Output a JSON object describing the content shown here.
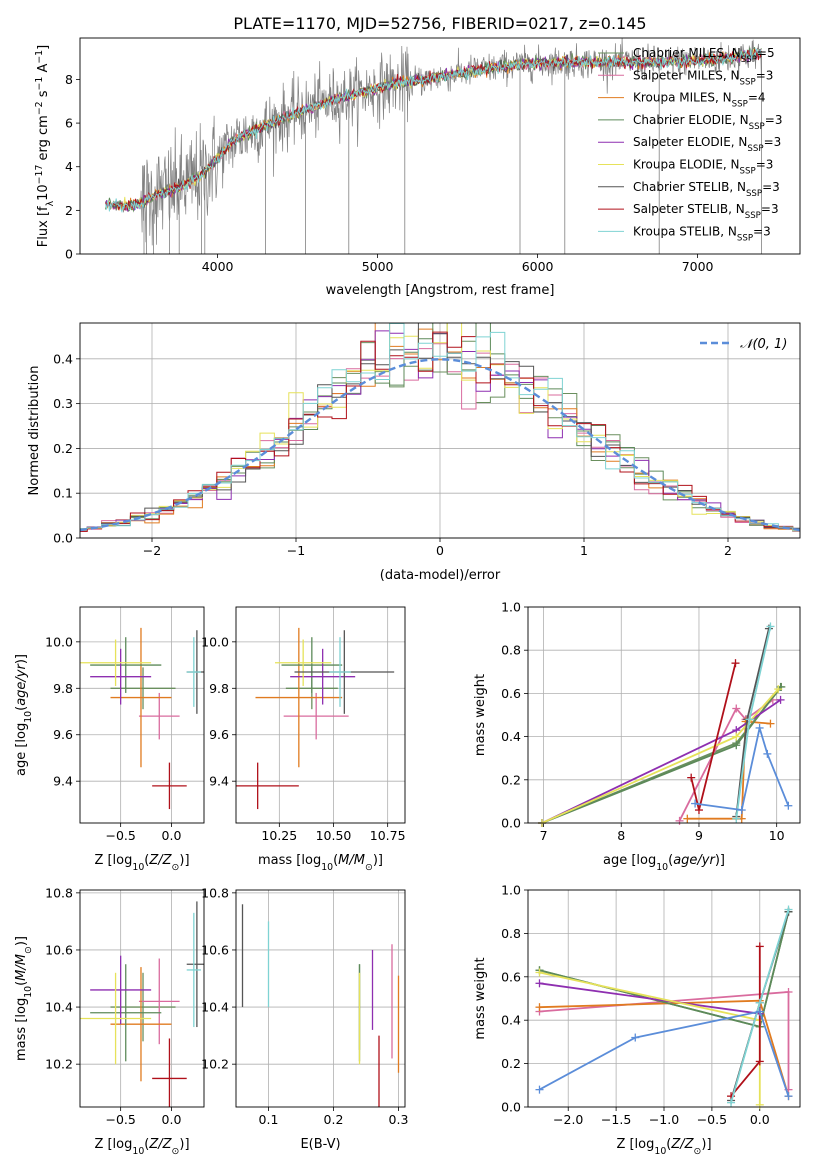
{
  "figure_title": "PLATE=1170, MJD=52756, FIBERID=0217, z=0.145",
  "colors": {
    "grid": "#b0b0b0",
    "models": [
      "#6a8f5e",
      "#d96b9e",
      "#e07b20",
      "#5d8a5a",
      "#8e2fb0",
      "#e6e25a",
      "#555555",
      "#b0101a",
      "#7fd3d3"
    ],
    "normal_curve": "#5b8dd9",
    "spectrum_data": "#808080"
  },
  "chart_data": [
    {
      "id": "spectrum",
      "type": "line",
      "title": "PLATE=1170, MJD=52756, FIBERID=0217, z=0.145",
      "xlabel": "wavelength [Angstrom, rest frame]",
      "ylabel": "Flux [f_λ 10^-17 erg cm^-2 s^-1 A^-1]",
      "xlim": [
        3140,
        7640
      ],
      "ylim": [
        0,
        9.9
      ],
      "xticks": [
        4000,
        5000,
        6000,
        7000
      ],
      "yticks": [
        0,
        2,
        4,
        6,
        8
      ],
      "grid": false,
      "legend_placement": "top-right",
      "legend": [
        {
          "label": "Chabrier MILES, N",
          "sub": "SSP",
          "suffix": "=5"
        },
        {
          "label": "Salpeter MILES, N",
          "sub": "SSP",
          "suffix": "=3"
        },
        {
          "label": "Kroupa MILES, N",
          "sub": "SSP",
          "suffix": "=4"
        },
        {
          "label": "Chabrier ELODIE, N",
          "sub": "SSP",
          "suffix": "=3"
        },
        {
          "label": "Salpeter ELODIE, N",
          "sub": "SSP",
          "suffix": "=3"
        },
        {
          "label": "Kroupa ELODIE, N",
          "sub": "SSP",
          "suffix": "=3"
        },
        {
          "label": "Chabrier STELIB, N",
          "sub": "SSP",
          "suffix": "=3"
        },
        {
          "label": "Salpeter STELIB, N",
          "sub": "SSP",
          "suffix": "=3"
        },
        {
          "label": "Kroupa STELIB, N",
          "sub": "SSP",
          "suffix": "=3"
        }
      ],
      "continuum": {
        "x": [
          3300,
          3450,
          3520,
          3600,
          3700,
          3800,
          3900,
          4000,
          4100,
          4300,
          4500,
          4700,
          4900,
          5100,
          5300,
          5600,
          5900,
          6200,
          6500,
          6800,
          7100,
          7400
        ],
        "y": [
          2.3,
          2.2,
          2.3,
          2.7,
          2.9,
          3.2,
          3.6,
          4.4,
          5.2,
          5.9,
          6.5,
          7.0,
          7.4,
          7.8,
          8.0,
          8.4,
          8.7,
          8.8,
          8.8,
          8.8,
          8.9,
          9.2
        ]
      },
      "data_spikes_x": [
        3540,
        3555,
        3600,
        3700,
        3760,
        3900,
        3920,
        4300,
        4550,
        4820,
        5170,
        5890,
        6170,
        6760,
        7400
      ]
    },
    {
      "id": "residuals",
      "type": "histogram",
      "xlabel": "(data-model)/error",
      "ylabel": "Normed distribution",
      "xlim": [
        -2.5,
        2.5
      ],
      "ylim": [
        0,
        0.48
      ],
      "xticks": [
        -2,
        -1,
        0,
        1,
        2
      ],
      "yticks": [
        0.0,
        0.1,
        0.2,
        0.3,
        0.4
      ],
      "grid": true,
      "legend_placement": "top-right",
      "legend": [
        "𝒩(0, 1)"
      ],
      "bin_width": 0.1
    },
    {
      "id": "age_vs_Z",
      "type": "errorbar",
      "xlabel": "Z [log10(Z/Z⊙)]",
      "ylabel": "age [log10(age/yr)]",
      "xlim": [
        -0.9,
        0.32
      ],
      "ylim": [
        9.22,
        10.15
      ],
      "xticks": [
        -0.5,
        0.0
      ],
      "yticks": [
        9.4,
        9.6,
        9.8,
        10.0
      ],
      "grid": true,
      "points": [
        {
          "model": 0,
          "x": -0.28,
          "xerr": 0.32,
          "y": 9.8,
          "yerr": 0.09
        },
        {
          "model": 1,
          "x": -0.12,
          "xerr": 0.2,
          "y": 9.68,
          "yerr": 0.1
        },
        {
          "model": 2,
          "x": -0.3,
          "xerr": 0.3,
          "y": 9.76,
          "yerr": 0.3
        },
        {
          "model": 3,
          "x": -0.45,
          "xerr": 0.35,
          "y": 9.9,
          "yerr": 0.12
        },
        {
          "model": 4,
          "x": -0.5,
          "xerr": 0.3,
          "y": 9.85,
          "yerr": 0.12
        },
        {
          "model": 5,
          "x": -0.55,
          "xerr": 0.35,
          "y": 9.91,
          "yerr": 0.1
        },
        {
          "model": 6,
          "x": 0.25,
          "xerr": 0.1,
          "y": 9.87,
          "yerr": 0.18
        },
        {
          "model": 7,
          "x": -0.02,
          "xerr": 0.17,
          "y": 9.38,
          "yerr": 0.1
        },
        {
          "model": 8,
          "x": 0.22,
          "xerr": 0.07,
          "y": 9.87,
          "yerr": 0.15
        }
      ]
    },
    {
      "id": "age_vs_mass",
      "type": "errorbar",
      "xlabel": "mass [log10(M/M⊙)]",
      "ylabel": "",
      "xlim": [
        10.05,
        10.83
      ],
      "ylim": [
        9.22,
        10.15
      ],
      "xticks": [
        10.25,
        10.5,
        10.75
      ],
      "yticks": [
        9.4,
        9.6,
        9.8,
        10.0
      ],
      "grid": true,
      "points": [
        {
          "model": 0,
          "x": 10.4,
          "xerr": 0.12,
          "y": 9.8,
          "yerr": 0.09
        },
        {
          "model": 1,
          "x": 10.42,
          "xerr": 0.15,
          "y": 9.68,
          "yerr": 0.1
        },
        {
          "model": 2,
          "x": 10.34,
          "xerr": 0.2,
          "y": 9.76,
          "yerr": 0.3
        },
        {
          "model": 3,
          "x": 10.4,
          "xerr": 0.14,
          "y": 9.9,
          "yerr": 0.12
        },
        {
          "model": 4,
          "x": 10.45,
          "xerr": 0.15,
          "y": 9.85,
          "yerr": 0.12
        },
        {
          "model": 5,
          "x": 10.36,
          "xerr": 0.13,
          "y": 9.91,
          "yerr": 0.1
        },
        {
          "model": 6,
          "x": 10.55,
          "xerr": 0.23,
          "y": 9.87,
          "yerr": 0.18
        },
        {
          "model": 7,
          "x": 10.15,
          "xerr": 0.19,
          "y": 9.38,
          "yerr": 0.1
        },
        {
          "model": 8,
          "x": 10.53,
          "xerr": 0.05,
          "y": 9.87,
          "yerr": 0.15
        }
      ]
    },
    {
      "id": "weight_vs_age",
      "type": "line",
      "xlabel": "age [log10(age/yr)]",
      "ylabel": "mass weight",
      "xlim": [
        6.8,
        10.3
      ],
      "ylim": [
        0,
        1.0
      ],
      "xticks": [
        7,
        8,
        9,
        10
      ],
      "yticks": [
        0.0,
        0.2,
        0.4,
        0.6,
        0.8,
        1.0
      ],
      "grid": true,
      "series": [
        {
          "model": 0,
          "x": [
            6.98,
            9.48,
            10.06
          ],
          "y": [
            0.0,
            0.37,
            0.63
          ]
        },
        {
          "model": 1,
          "x": [
            8.75,
            9.48,
            9.6,
            9.95
          ],
          "y": [
            0.01,
            0.53,
            0.48,
            0.57
          ]
        },
        {
          "model": 2,
          "x": [
            8.85,
            9.55,
            9.6,
            9.92
          ],
          "y": [
            0.02,
            0.02,
            0.47,
            0.46
          ]
        },
        {
          "model": 3,
          "x": [
            6.98,
            9.48,
            10.05
          ],
          "y": [
            0.0,
            0.36,
            0.63
          ]
        },
        {
          "model": 4,
          "x": [
            6.98,
            9.48,
            10.05
          ],
          "y": [
            0.0,
            0.43,
            0.57
          ]
        },
        {
          "model": 5,
          "x": [
            6.98,
            9.48,
            10.02
          ],
          "y": [
            0.0,
            0.4,
            0.62
          ]
        },
        {
          "model": 6,
          "x": [
            9.48,
            9.62,
            9.9
          ],
          "y": [
            0.03,
            0.48,
            0.9
          ]
        },
        {
          "model": 7,
          "x": [
            8.9,
            9.0,
            9.47
          ],
          "y": [
            0.21,
            0.06,
            0.74
          ]
        },
        {
          "model": 8,
          "x": [
            9.48,
            9.65,
            9.92
          ],
          "y": [
            0.02,
            0.48,
            0.91
          ]
        },
        {
          "model": 9,
          "x": [
            8.95,
            9.55,
            9.78,
            9.88,
            10.15
          ],
          "y": [
            0.09,
            0.06,
            0.44,
            0.32,
            0.08
          ]
        }
      ]
    },
    {
      "id": "mass_vs_Z",
      "type": "errorbar",
      "xlabel": "Z [log10(Z/Z⊙)]",
      "ylabel": "mass [log10(M/M⊙)]",
      "xlim": [
        -0.9,
        0.32
      ],
      "ylim": [
        10.05,
        10.81
      ],
      "xticks": [
        -0.5,
        0.0
      ],
      "yticks": [
        10.2,
        10.4,
        10.6,
        10.8
      ],
      "grid": true,
      "points": [
        {
          "model": 0,
          "x": -0.28,
          "xerr": 0.32,
          "y": 10.4,
          "yerr": 0.12
        },
        {
          "model": 1,
          "x": -0.12,
          "xerr": 0.2,
          "y": 10.42,
          "yerr": 0.15
        },
        {
          "model": 2,
          "x": -0.3,
          "xerr": 0.3,
          "y": 10.34,
          "yerr": 0.2
        },
        {
          "model": 3,
          "x": -0.45,
          "xerr": 0.35,
          "y": 10.38,
          "yerr": 0.17
        },
        {
          "model": 4,
          "x": -0.5,
          "xerr": 0.3,
          "y": 10.46,
          "yerr": 0.12
        },
        {
          "model": 5,
          "x": -0.55,
          "xerr": 0.35,
          "y": 10.36,
          "yerr": 0.16
        },
        {
          "model": 6,
          "x": 0.25,
          "xerr": 0.1,
          "y": 10.55,
          "yerr": 0.22
        },
        {
          "model": 7,
          "x": -0.02,
          "xerr": 0.17,
          "y": 10.15,
          "yerr": 0.14
        },
        {
          "model": 8,
          "x": 0.22,
          "xerr": 0.07,
          "y": 10.53,
          "yerr": 0.2
        }
      ]
    },
    {
      "id": "mass_vs_ebv",
      "type": "errorbar",
      "xlabel": "E(B-V)",
      "ylabel": "",
      "xlim": [
        0.05,
        0.31
      ],
      "ylim": [
        10.05,
        10.81
      ],
      "xticks": [
        0.1,
        0.2,
        0.3
      ],
      "yticks": [
        10.2,
        10.4,
        10.6,
        10.8
      ],
      "grid": true,
      "points": [
        {
          "model": 0,
          "x": 0.24,
          "y": 10.4,
          "yerr": 0.15
        },
        {
          "model": 1,
          "x": 0.29,
          "y": 10.42,
          "yerr": 0.2
        },
        {
          "model": 2,
          "x": 0.3,
          "y": 10.34,
          "yerr": 0.17
        },
        {
          "model": 3,
          "x": 0.24,
          "y": 10.38,
          "yerr": 0.17
        },
        {
          "model": 4,
          "x": 0.26,
          "y": 10.46,
          "yerr": 0.14
        },
        {
          "model": 5,
          "x": 0.24,
          "y": 10.36,
          "yerr": 0.16
        },
        {
          "model": 6,
          "x": 0.06,
          "y": 10.58,
          "yerr": 0.18
        },
        {
          "model": 7,
          "x": 0.27,
          "y": 10.16,
          "yerr": 0.14
        },
        {
          "model": 8,
          "x": 0.1,
          "y": 10.55,
          "yerr": 0.15
        }
      ]
    },
    {
      "id": "weight_vs_Z",
      "type": "line",
      "xlabel": "Z [log10(Z/Z⊙)]",
      "ylabel": "mass weight",
      "xlim": [
        -2.42,
        0.42
      ],
      "ylim": [
        0,
        1.0
      ],
      "xticks": [
        -2.0,
        -1.5,
        -1.0,
        -0.5,
        0.0
      ],
      "yticks": [
        0.0,
        0.2,
        0.4,
        0.6,
        0.8,
        1.0
      ],
      "grid": true,
      "series": [
        {
          "model": 0,
          "x": [
            -2.3,
            0.0,
            0.3
          ],
          "y": [
            0.63,
            0.37,
            0.9
          ]
        },
        {
          "model": 1,
          "x": [
            -2.3,
            0.3,
            0.3
          ],
          "y": [
            0.44,
            0.53,
            0.08
          ]
        },
        {
          "model": 2,
          "x": [
            -2.3,
            0.0,
            0.3
          ],
          "y": [
            0.46,
            0.49,
            0.05
          ]
        },
        {
          "model": 3,
          "x": [
            -2.3,
            0.0,
            0.3
          ],
          "y": [
            0.63,
            0.37,
            0.9
          ]
        },
        {
          "model": 4,
          "x": [
            -2.3,
            0.0,
            0.0
          ],
          "y": [
            0.57,
            0.43,
            0.4
          ]
        },
        {
          "model": 5,
          "x": [
            -2.3,
            0.0,
            0.0
          ],
          "y": [
            0.62,
            0.4,
            0.01
          ]
        },
        {
          "model": 6,
          "x": [
            -0.3,
            0.0,
            0.3
          ],
          "y": [
            0.03,
            0.48,
            0.9
          ]
        },
        {
          "model": 7,
          "x": [
            -0.3,
            0.0,
            0.0
          ],
          "y": [
            0.05,
            0.21,
            0.74
          ]
        },
        {
          "model": 8,
          "x": [
            -0.3,
            0.0,
            0.3
          ],
          "y": [
            0.02,
            0.48,
            0.91
          ]
        },
        {
          "model": 9,
          "x": [
            -2.3,
            -1.3,
            0.0,
            0.3
          ],
          "y": [
            0.08,
            0.32,
            0.44,
            0.05
          ]
        }
      ]
    }
  ]
}
